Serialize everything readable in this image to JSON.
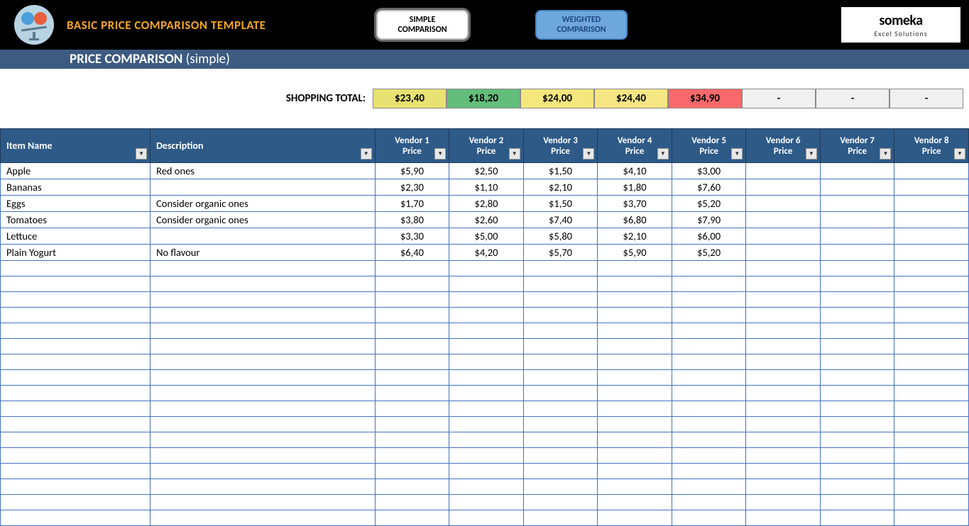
{
  "header": {
    "title": "BASIC PRICE COMPARISON TEMPLATE",
    "subtitle_bold": "PRICE COMPARISON",
    "subtitle_thin": "(simple)",
    "brand_name": "someka",
    "brand_tag": "Excel Solutions",
    "nav": [
      {
        "label": "SIMPLE COMPARISON",
        "active": true
      },
      {
        "label": "WEIGHTED COMPARISON",
        "active": false
      }
    ]
  },
  "totals": {
    "label": "SHOPPING TOTAL:",
    "cells": [
      {
        "value": "$23,40",
        "bg": "#e8e272"
      },
      {
        "value": "$18,20",
        "bg": "#63be7b"
      },
      {
        "value": "$24,00",
        "bg": "#f4e77e"
      },
      {
        "value": "$24,40",
        "bg": "#f6e683"
      },
      {
        "value": "$34,90",
        "bg": "#f8696b"
      },
      {
        "value": "-",
        "bg": "#f0f0f0"
      },
      {
        "value": "-",
        "bg": "#f0f0f0"
      },
      {
        "value": "-",
        "bg": "#f0f0f0"
      }
    ]
  },
  "table": {
    "columns": {
      "item": "Item Name",
      "desc": "Description",
      "vendors": [
        "Vendor 1 Price",
        "Vendor 2 Price",
        "Vendor 3 Price",
        "Vendor 4 Price",
        "Vendor 5 Price",
        "Vendor 6 Price",
        "Vendor 7 Price",
        "Vendor 8 Price"
      ]
    },
    "rows": [
      {
        "item": "Apple",
        "desc": "Red ones",
        "prices": [
          "$5,90",
          "$2,50",
          "$1,50",
          "$4,10",
          "$3,00",
          "",
          "",
          ""
        ]
      },
      {
        "item": "Bananas",
        "desc": "",
        "prices": [
          "$2,30",
          "$1,10",
          "$2,10",
          "$1,80",
          "$7,60",
          "",
          "",
          ""
        ]
      },
      {
        "item": "Eggs",
        "desc": "Consider organic ones",
        "prices": [
          "$1,70",
          "$2,80",
          "$1,50",
          "$3,70",
          "$5,20",
          "",
          "",
          ""
        ]
      },
      {
        "item": "Tomatoes",
        "desc": "Consider organic ones",
        "prices": [
          "$3,80",
          "$2,60",
          "$7,40",
          "$6,80",
          "$7,90",
          "",
          "",
          ""
        ]
      },
      {
        "item": "Lettuce",
        "desc": "",
        "prices": [
          "$3,30",
          "$5,00",
          "$5,80",
          "$2,10",
          "$6,00",
          "",
          "",
          ""
        ]
      },
      {
        "item": "Plain Yogurt",
        "desc": "No flavour",
        "prices": [
          "$6,40",
          "$4,20",
          "$5,70",
          "$5,90",
          "$5,20",
          "",
          "",
          ""
        ]
      }
    ],
    "empty_rows": 17
  },
  "colors": {
    "header_bg": "#000000",
    "substrip_bg": "#3d5a80",
    "th_bg": "#2e5a88",
    "cell_border": "#4472c4"
  }
}
